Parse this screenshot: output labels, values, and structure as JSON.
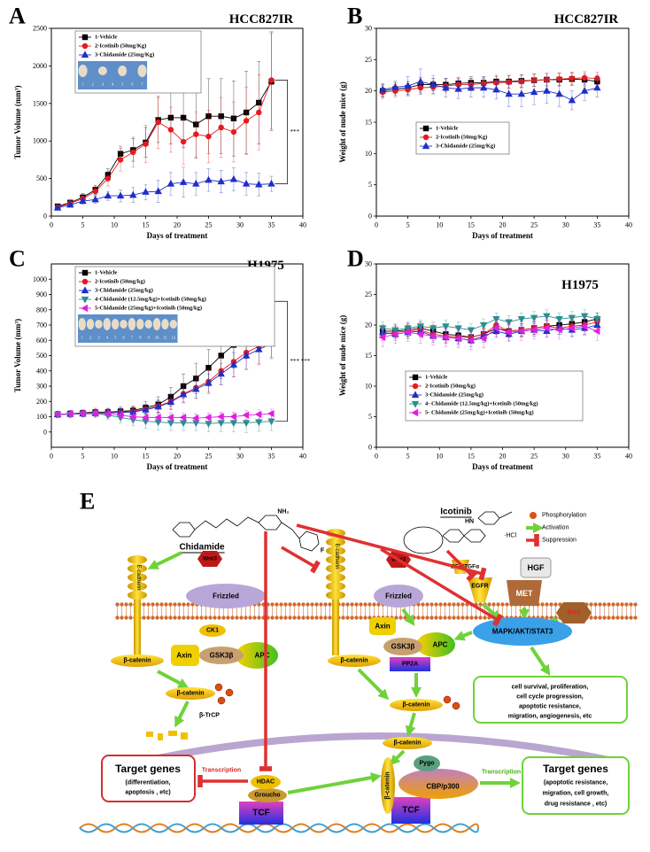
{
  "chart_data": [
    {
      "type": "line",
      "panel": "A",
      "title": "HCC827IR",
      "xlabel": "Days of treatment",
      "ylabel": "Tumor Volume (mm³)",
      "x": [
        1,
        3,
        5,
        7,
        9,
        11,
        13,
        15,
        17,
        19,
        21,
        23,
        25,
        27,
        29,
        31,
        33,
        35
      ],
      "series": [
        {
          "name": "1-Vehicle",
          "color": "#000000",
          "marker": "square",
          "values": [
            130,
            180,
            250,
            350,
            550,
            830,
            880,
            980,
            1280,
            1310,
            1310,
            1220,
            1330,
            1330,
            1300,
            1380,
            1510,
            1790
          ],
          "errors": [
            20,
            30,
            50,
            60,
            80,
            100,
            150,
            200,
            300,
            350,
            400,
            450,
            500,
            500,
            500,
            550,
            550,
            650
          ]
        },
        {
          "name": "2-Icotinib (50mg/Kg)",
          "color": "#e8191e",
          "marker": "circle",
          "values": [
            120,
            170,
            230,
            330,
            500,
            750,
            850,
            960,
            1250,
            1150,
            990,
            1090,
            1060,
            1180,
            1120,
            1270,
            1380,
            1810
          ],
          "errors": [
            20,
            30,
            40,
            60,
            100,
            150,
            200,
            250,
            350,
            300,
            300,
            300,
            350,
            400,
            400,
            450,
            500,
            650
          ]
        },
        {
          "name": "3-Chidamide (25mg/Kg)",
          "color": "#1f2fc8",
          "marker": "triangle-up",
          "values": [
            110,
            150,
            200,
            220,
            270,
            270,
            280,
            320,
            330,
            430,
            450,
            430,
            480,
            460,
            490,
            430,
            420,
            430
          ],
          "errors": [
            20,
            30,
            40,
            50,
            60,
            80,
            100,
            100,
            150,
            150,
            200,
            150,
            150,
            150,
            150,
            150,
            150,
            100
          ]
        }
      ],
      "xlim": [
        0,
        40
      ],
      "xticks": [
        0,
        5,
        10,
        15,
        20,
        25,
        30,
        35,
        40
      ],
      "ylim": [
        0,
        2500
      ],
      "yticks": [
        0,
        500,
        1000,
        1500,
        2000,
        2500
      ],
      "legend": "upper left",
      "inset_labels": [
        "1",
        "2",
        "3",
        "4",
        "5",
        "6",
        "7"
      ],
      "annotation": "***"
    },
    {
      "type": "line",
      "panel": "B",
      "title": "HCC827IR",
      "xlabel": "Days of treatment",
      "ylabel": "Weight of nude mice (g)",
      "x": [
        1,
        3,
        5,
        7,
        9,
        11,
        13,
        15,
        17,
        19,
        21,
        23,
        25,
        27,
        29,
        31,
        33,
        35
      ],
      "series": [
        {
          "name": "1-Vehicle",
          "color": "#000000",
          "marker": "square",
          "values": [
            20,
            20.3,
            20.5,
            21,
            21,
            21,
            21.2,
            21.3,
            21.3,
            21.5,
            21.5,
            21.6,
            21.7,
            21.8,
            21.8,
            21.9,
            21.8,
            21.5
          ],
          "errors": [
            1,
            1,
            1,
            1.2,
            1,
            1,
            1,
            1,
            1,
            1,
            1,
            1,
            1,
            1,
            1,
            1,
            1,
            1
          ]
        },
        {
          "name": "2-Icotinib (50mg/Kg)",
          "color": "#e8191e",
          "marker": "circle",
          "values": [
            19.8,
            20,
            20.2,
            20.5,
            20.6,
            20.8,
            21,
            21,
            21.2,
            21.3,
            21.4,
            21.5,
            21.7,
            21.8,
            21.9,
            22,
            22.1,
            22
          ],
          "errors": [
            1,
            1,
            1,
            1,
            1,
            1,
            1,
            1,
            1,
            1,
            1,
            1,
            1,
            1,
            1,
            1,
            1,
            1
          ]
        },
        {
          "name": "3-Chidamide (25mg/Kg)",
          "color": "#1f2fc8",
          "marker": "triangle-up",
          "values": [
            20.2,
            20.6,
            20.8,
            21.5,
            21,
            20.5,
            20.3,
            20.5,
            20.5,
            20.2,
            19.5,
            19.5,
            19.8,
            20,
            19.5,
            18.5,
            20,
            20.5
          ],
          "errors": [
            1,
            1,
            1.5,
            2,
            1.5,
            1.5,
            1.5,
            1.5,
            1.5,
            1.5,
            2,
            2,
            2,
            2,
            2,
            1.5,
            1.5,
            1.5
          ]
        }
      ],
      "xlim": [
        0,
        40
      ],
      "xticks": [
        0,
        5,
        10,
        15,
        20,
        25,
        30,
        35,
        40
      ],
      "ylim": [
        0,
        30
      ],
      "yticks": [
        0,
        5,
        10,
        15,
        20,
        25,
        30
      ],
      "legend": "center left"
    },
    {
      "type": "line",
      "panel": "C",
      "title": "H1975",
      "xlabel": "Days of treatment",
      "ylabel": "Tumor Volume (mm³)",
      "x": [
        1,
        3,
        5,
        7,
        9,
        11,
        13,
        15,
        17,
        19,
        21,
        23,
        25,
        27,
        29,
        31,
        33,
        35
      ],
      "series": [
        {
          "name": "1-Vehicle",
          "color": "#000000",
          "marker": "square",
          "values": [
            115,
            120,
            125,
            130,
            130,
            135,
            140,
            160,
            180,
            230,
            300,
            350,
            420,
            500,
            570,
            650,
            750,
            855
          ],
          "errors": [
            20,
            20,
            20,
            25,
            25,
            30,
            30,
            40,
            50,
            60,
            80,
            100,
            120,
            150,
            150,
            170,
            180,
            180
          ]
        },
        {
          "name": "2-Icotinib (50mg/kg)",
          "color": "#e8191e",
          "marker": "circle",
          "values": [
            115,
            118,
            122,
            125,
            125,
            130,
            135,
            150,
            170,
            200,
            250,
            290,
            330,
            400,
            460,
            520,
            560,
            620
          ],
          "errors": [
            20,
            20,
            20,
            20,
            25,
            25,
            30,
            30,
            40,
            50,
            60,
            70,
            80,
            90,
            100,
            110,
            120,
            130
          ]
        },
        {
          "name": "3-Chidamide (25mg/kg)",
          "color": "#1f2fc8",
          "marker": "triangle-up",
          "values": [
            115,
            118,
            120,
            123,
            125,
            128,
            130,
            145,
            165,
            195,
            245,
            280,
            320,
            380,
            440,
            500,
            540,
            580
          ],
          "errors": [
            20,
            20,
            20,
            20,
            25,
            25,
            30,
            30,
            40,
            50,
            50,
            60,
            60,
            70,
            80,
            90,
            90,
            100
          ]
        },
        {
          "name": "4-Chidamide (12.5mg/kg)+Icotinib (50mg/kg)",
          "color": "#2a8f8f",
          "marker": "triangle-down",
          "values": [
            115,
            115,
            118,
            120,
            110,
            95,
            80,
            70,
            65,
            60,
            60,
            60,
            55,
            60,
            60,
            60,
            65,
            70
          ],
          "errors": [
            20,
            20,
            20,
            25,
            30,
            35,
            40,
            45,
            50,
            50,
            50,
            50,
            55,
            60,
            60,
            65,
            60,
            60
          ]
        },
        {
          "name": "5-Chidamide (25mg/kg)+Icotinib (50mg/kg)",
          "color": "#e020e0",
          "marker": "triangle-left",
          "values": [
            115,
            120,
            120,
            122,
            120,
            110,
            100,
            95,
            95,
            95,
            95,
            90,
            95,
            100,
            100,
            110,
            115,
            120
          ],
          "errors": [
            20,
            20,
            20,
            20,
            25,
            25,
            30,
            30,
            30,
            30,
            30,
            30,
            30,
            30,
            30,
            30,
            30,
            30
          ]
        }
      ],
      "xlim": [
        0,
        40
      ],
      "xticks": [
        0,
        5,
        10,
        15,
        20,
        25,
        30,
        35,
        40
      ],
      "ylim": [
        -100,
        1100
      ],
      "yticks": [
        0,
        100,
        200,
        300,
        400,
        500,
        600,
        700,
        800,
        900,
        1000
      ],
      "legend": "upper left",
      "inset_labels": [
        "1",
        "2",
        "3",
        "4",
        "5",
        "6",
        "7",
        "8",
        "9",
        "10",
        "11",
        "12"
      ],
      "annotation": "*** ***"
    },
    {
      "type": "line",
      "panel": "D",
      "title": "H1975",
      "xlabel": "Days of treatment",
      "ylabel": "Weight of nude mice (g)",
      "x": [
        1,
        3,
        5,
        7,
        9,
        11,
        13,
        15,
        17,
        19,
        21,
        23,
        25,
        27,
        29,
        31,
        33,
        35
      ],
      "series": [
        {
          "name": "1-Vehicle",
          "color": "#000000",
          "marker": "square",
          "values": [
            19,
            19,
            19.2,
            19.5,
            19,
            18.5,
            18.3,
            18,
            18.5,
            19.5,
            19,
            19.2,
            19.5,
            19.8,
            20,
            20.2,
            20.5,
            21
          ],
          "errors": [
            1,
            1,
            1,
            1,
            1,
            1,
            1,
            1,
            1,
            1,
            1,
            1,
            1,
            1,
            1,
            1,
            1,
            1
          ]
        },
        {
          "name": "2-Icotinib (50mg/kg)",
          "color": "#e8191e",
          "marker": "circle",
          "values": [
            18.5,
            18.8,
            19,
            19.2,
            18.5,
            18.2,
            18,
            18,
            18.5,
            20,
            19,
            19.2,
            19.5,
            19.8,
            19.5,
            19.8,
            20,
            20.5
          ],
          "errors": [
            1,
            1,
            1,
            1,
            1,
            1,
            1,
            1,
            1,
            1,
            1,
            1,
            1,
            1,
            1,
            1,
            1,
            1
          ]
        },
        {
          "name": "3-Chidamide (25mg/kg)",
          "color": "#1f2fc8",
          "marker": "triangle-up",
          "values": [
            18.8,
            18.5,
            18.8,
            19,
            18.2,
            18,
            17.8,
            17.5,
            18.2,
            19,
            18.5,
            19,
            19.2,
            19,
            19.5,
            19.2,
            19.5,
            20
          ],
          "errors": [
            1,
            1,
            1,
            1,
            1,
            1,
            1,
            1,
            1,
            1,
            1,
            1,
            1,
            1,
            1,
            1,
            1,
            1
          ]
        },
        {
          "name": "4- Chidamide (12.5mg/kg)+Icotinib (50mg/kg)",
          "color": "#2a8f8f",
          "marker": "triangle-down",
          "values": [
            19.5,
            19.2,
            19.5,
            19.8,
            19.5,
            19.8,
            19.5,
            19.2,
            20,
            21,
            20.5,
            21,
            21.2,
            21.5,
            21,
            21.2,
            21.5,
            21
          ],
          "errors": [
            1,
            1,
            1,
            1,
            1,
            1,
            1,
            1,
            1,
            1,
            1,
            1,
            1,
            1,
            1,
            1,
            1,
            1
          ]
        },
        {
          "name": "5- Chidamide (25mg/kg)+Icotinib (50mg/kg)",
          "color": "#e020e0",
          "marker": "triangle-left",
          "values": [
            18,
            18.5,
            18.8,
            18.5,
            18.2,
            18,
            17.8,
            17.5,
            17.8,
            19.5,
            18.8,
            19,
            19.2,
            19.5,
            19.2,
            19.5,
            19.8,
            19
          ],
          "errors": [
            1.5,
            1.5,
            1.5,
            1.5,
            1.5,
            1.5,
            1.5,
            1.5,
            1.5,
            1.5,
            1.5,
            1.5,
            1.5,
            1.5,
            1.5,
            1.5,
            1.5,
            1.5
          ]
        }
      ],
      "xlim": [
        0,
        40
      ],
      "xticks": [
        0,
        5,
        10,
        15,
        20,
        25,
        30,
        35,
        40
      ],
      "ylim": [
        0,
        30
      ],
      "yticks": [
        0,
        5,
        10,
        15,
        20,
        25,
        30
      ],
      "legend": "lower left"
    }
  ],
  "diagram": {
    "texts": [
      "E",
      "Chidamide",
      "Icotinib",
      "·HCl",
      "Phosphorylation",
      "Activation",
      "Suppression",
      "E-cadherin",
      "Wnt3",
      "Frizzled",
      "β-catenin",
      "CK1",
      "Axin",
      "GSK3β",
      "APC",
      "β-catenin",
      "β-TrCP",
      "E-cadherin",
      "Wnt3",
      "Frizzled",
      "β-catenin",
      "Axin",
      "GSK3β",
      "APC",
      "PP2A",
      "β-catenin",
      "EGF/TGFα",
      "EGFR",
      "HGF",
      "MET",
      "RAS",
      "MAPK/AKT/STAT3",
      "cell survival, proliferation,",
      "cell cycle progression,",
      "apoptotic resistance,",
      "migration, angiogenesis, etc",
      "β-catenin",
      "Target genes",
      "(differentiation,",
      "apoptosis , etc)",
      "Transcription",
      "HDAC",
      "Groucho",
      "TCF",
      "β-catenin",
      "Pygo",
      "CBP/p300",
      "TCF",
      "Transcription",
      "Target genes",
      "(apoptotic resistance,",
      "migration, cell growth,",
      "drug resistance , etc)",
      "NH₂",
      "F",
      "HN"
    ]
  }
}
